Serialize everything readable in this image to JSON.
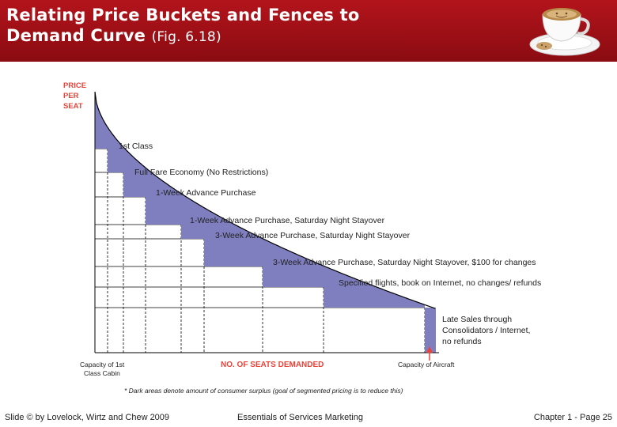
{
  "slide": {
    "title": "Relating Price Buckets and Fences to",
    "title_line2": "Demand Curve",
    "figure_ref": "(Fig. 6.18)"
  },
  "diagram": {
    "y_axis_label": [
      "PRICE",
      "PER",
      "SEAT"
    ],
    "x_axis_label": "NO. OF SEATS DEMANDED",
    "capacity_cabin_label": [
      "Capacity of 1st",
      "Class Cabin"
    ],
    "capacity_aircraft_label": "Capacity of Aircraft",
    "footnote": "* Dark areas denote amount of consumer surplus (goal of segmented pricing is to reduce this)",
    "buckets": [
      {
        "label": "1st Class"
      },
      {
        "label": "Full Fare Economy (No Restrictions)"
      },
      {
        "label": "1-Week Advance Purchase"
      },
      {
        "label": "1-Week Advance Purchase, Saturday Night Stayover"
      },
      {
        "label": "3-Week Advance Purchase, Saturday Night Stayover"
      },
      {
        "label": "3-Week Advance Purchase, Saturday Night Stayover, $100 for changes"
      },
      {
        "label": "Specified flights, book on Internet, no changes/ refunds"
      },
      {
        "label_lines": [
          "Late Sales through",
          "Consolidators / Internet,",
          "no refunds"
        ]
      }
    ],
    "colors": {
      "surplus": "#7f7fc0",
      "curve": "#000000",
      "label_red": "#e8443a"
    }
  },
  "footer": {
    "left": "Slide © by Lovelock, Wirtz and Chew 2009",
    "center": "Essentials of Services Marketing",
    "right": "Chapter 1 - Page 25"
  }
}
